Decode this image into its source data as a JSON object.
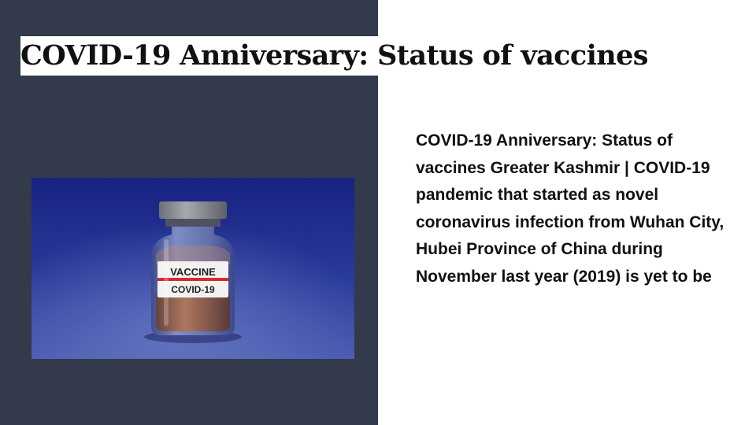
{
  "slide": {
    "title": "COVID-19 Anniversary: Status of vaccines",
    "body": "COVID-19 Anniversary: Status of vaccines Greater Kashmir | COVID-19 pandemic that started as novel coronavirus infection from Wuhan City, Hubei Province of China during November last year (2019) is yet to be",
    "image": {
      "label_line1": "VACCINE",
      "label_line2": "COVID-19"
    }
  },
  "colors": {
    "left_panel": "#323a4c",
    "photo_background": "#27348f",
    "vial_glass": "#6a7ab3",
    "cap": "#8a8c94",
    "label_stripe": "#d42a2a"
  }
}
